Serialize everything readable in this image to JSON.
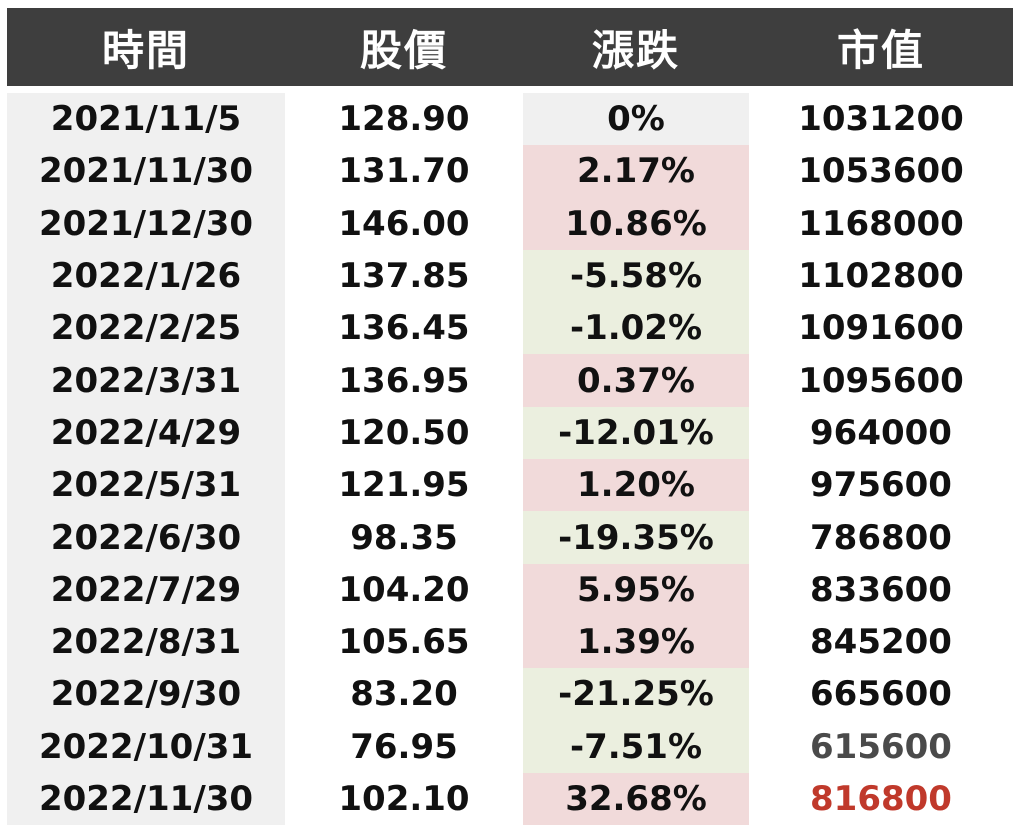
{
  "header": [
    "時間",
    "股價",
    "漲跌",
    "市值"
  ],
  "colors": {
    "header_bg": "#3e3e3e",
    "up_bg": "#f1dada",
    "down_bg": "#ebefdf",
    "flat_bg": "#f0f0f0",
    "date_col_bg": "#f0f0f0",
    "text": "#111111",
    "value_gray": "#4a4a4a",
    "value_red": "#c0392b"
  },
  "rows": [
    {
      "date": "2021/11/5",
      "price": "128.90",
      "change": "0%",
      "trend": "flat",
      "value": "1031200",
      "value_color": "#111111"
    },
    {
      "date": "2021/11/30",
      "price": "131.70",
      "change": "2.17%",
      "trend": "up",
      "value": "1053600",
      "value_color": "#111111"
    },
    {
      "date": "2021/12/30",
      "price": "146.00",
      "change": "10.86%",
      "trend": "up",
      "value": "1168000",
      "value_color": "#111111"
    },
    {
      "date": "2022/1/26",
      "price": "137.85",
      "change": "-5.58%",
      "trend": "down",
      "value": "1102800",
      "value_color": "#111111"
    },
    {
      "date": "2022/2/25",
      "price": "136.45",
      "change": "-1.02%",
      "trend": "down",
      "value": "1091600",
      "value_color": "#111111"
    },
    {
      "date": "2022/3/31",
      "price": "136.95",
      "change": "0.37%",
      "trend": "up",
      "value": "1095600",
      "value_color": "#111111"
    },
    {
      "date": "2022/4/29",
      "price": "120.50",
      "change": "-12.01%",
      "trend": "down",
      "value": "964000",
      "value_color": "#111111"
    },
    {
      "date": "2022/5/31",
      "price": "121.95",
      "change": "1.20%",
      "trend": "up",
      "value": "975600",
      "value_color": "#111111"
    },
    {
      "date": "2022/6/30",
      "price": "98.35",
      "change": "-19.35%",
      "trend": "down",
      "value": "786800",
      "value_color": "#111111"
    },
    {
      "date": "2022/7/29",
      "price": "104.20",
      "change": "5.95%",
      "trend": "up",
      "value": "833600",
      "value_color": "#111111"
    },
    {
      "date": "2022/8/31",
      "price": "105.65",
      "change": "1.39%",
      "trend": "up",
      "value": "845200",
      "value_color": "#111111"
    },
    {
      "date": "2022/9/30",
      "price": "83.20",
      "change": "-21.25%",
      "trend": "down",
      "value": "665600",
      "value_color": "#111111"
    },
    {
      "date": "2022/10/31",
      "price": "76.95",
      "change": "-7.51%",
      "trend": "down",
      "value": "615600",
      "value_color": "#4a4a4a"
    },
    {
      "date": "2022/11/30",
      "price": "102.10",
      "change": "32.68%",
      "trend": "up",
      "value": "816800",
      "value_color": "#c0392b"
    }
  ]
}
